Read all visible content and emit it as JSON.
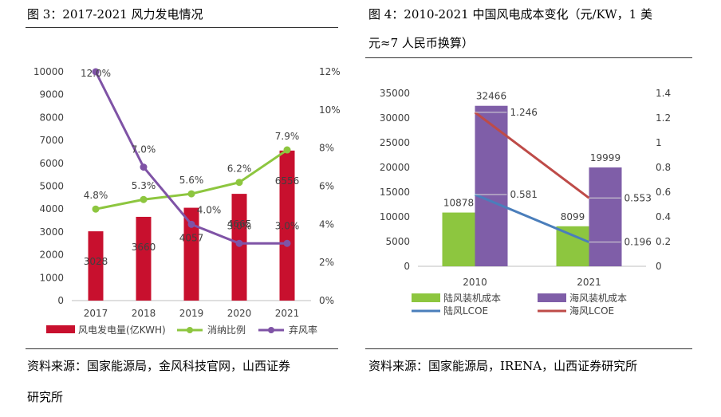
{
  "left": {
    "title": "图 3：2017-2021 风力发电情况",
    "source_line1": "资料来源：国家能源局，金风科技官网，山西证券",
    "source_line2": "研究所",
    "chart_data": {
      "type": "bar+line",
      "categories": [
        "2017",
        "2018",
        "2019",
        "2020",
        "2021"
      ],
      "bar_series": {
        "name": "风电发电量(亿KWH)",
        "values": [
          3028,
          3660,
          4057,
          4665,
          6556
        ],
        "color": "#c8102e",
        "labels": [
          "3028",
          "3660",
          "4057",
          "4665",
          "6556"
        ]
      },
      "line_series": [
        {
          "name": "消纳比例",
          "values": [
            4.8,
            5.3,
            5.6,
            6.2,
            7.9
          ],
          "color": "#8dc63f",
          "labels": [
            "4.8%",
            "5.3%",
            "5.6%",
            "6.2%",
            "7.9%"
          ]
        },
        {
          "name": "弃风率",
          "values": [
            12.0,
            7.0,
            4.0,
            3.0,
            3.0
          ],
          "color": "#7f53a6",
          "labels": [
            "12.0%",
            "7.0%",
            "4.0%",
            "3.0%",
            "3.0%"
          ]
        }
      ],
      "y_left": {
        "min": 0,
        "max": 10000,
        "ticks": [
          "0",
          "1000",
          "2000",
          "3000",
          "4000",
          "5000",
          "6000",
          "7000",
          "8000",
          "9000",
          "10000"
        ]
      },
      "y_right": {
        "min": 0,
        "max": 12,
        "ticks": [
          "0%",
          "2%",
          "4%",
          "6%",
          "8%",
          "10%",
          "12%"
        ]
      }
    }
  },
  "right": {
    "title_line1": "图 4：2010-2021 中国风电成本变化（元/KW，1 美",
    "title_line2": "元≈7 人民币换算）",
    "source_line1": "资料来源：国家能源局，IRENA，山西证券研究所",
    "chart_data": {
      "type": "bar+line",
      "categories": [
        "2010",
        "2021"
      ],
      "bar_series": [
        {
          "name": "陆风装机成本",
          "values": [
            10878,
            8099
          ],
          "color": "#8dc63f",
          "labels": [
            "10878",
            "8099"
          ]
        },
        {
          "name": "海风装机成本",
          "values": [
            32466,
            19999
          ],
          "color": "#7f5ea8",
          "labels": [
            "32466",
            "19999"
          ]
        }
      ],
      "line_series": [
        {
          "name": "陆风LCOE",
          "values": [
            0.581,
            0.196
          ],
          "color": "#4a7ebb",
          "labels": [
            "0.581",
            "0.196"
          ]
        },
        {
          "name": "海风LCOE",
          "values": [
            1.246,
            0.553
          ],
          "color": "#be4b48",
          "labels": [
            "1.246",
            "0.553"
          ]
        }
      ],
      "y_left": {
        "min": 0,
        "max": 35000,
        "ticks": [
          "0",
          "5000",
          "10000",
          "15000",
          "20000",
          "25000",
          "30000",
          "35000"
        ]
      },
      "y_right": {
        "min": 0,
        "max": 1.4,
        "ticks": [
          "0",
          "0.2",
          "0.4",
          "0.6",
          "0.8",
          "1",
          "1.2",
          "1.4"
        ]
      }
    }
  }
}
